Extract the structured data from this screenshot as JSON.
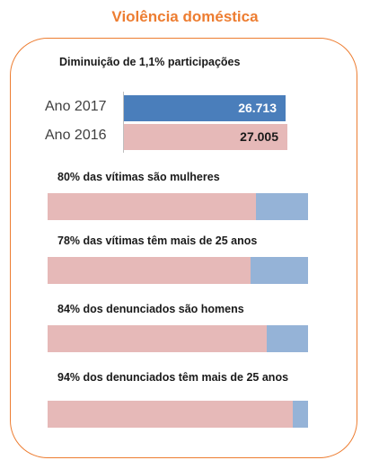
{
  "title": "Violência doméstica",
  "chart_data": [
    {
      "type": "bar",
      "orientation": "horizontal",
      "title": "Diminuição de 1,1% participações",
      "categories": [
        "Ano 2017",
        "Ano 2016"
      ],
      "values": [
        26713,
        27005
      ],
      "value_labels": [
        "26.713",
        "27.005"
      ],
      "colors": [
        "#4a7ebb",
        "#e6b9b8"
      ]
    },
    {
      "type": "bar",
      "stacked": true,
      "orientation": "horizontal",
      "normalized": true,
      "colors": [
        "#e6b9b8",
        "#95b3d7"
      ],
      "bars": [
        {
          "label": "80% das vítimas são mulheres",
          "values": [
            80,
            20
          ]
        },
        {
          "label": "78% das vítimas têm mais de 25 anos",
          "values": [
            78,
            22
          ]
        },
        {
          "label": "84% dos denunciados são homens",
          "values": [
            84,
            16
          ]
        },
        {
          "label": "94% dos denunciados têm mais de 25 anos",
          "values": [
            94,
            6
          ]
        }
      ]
    }
  ]
}
